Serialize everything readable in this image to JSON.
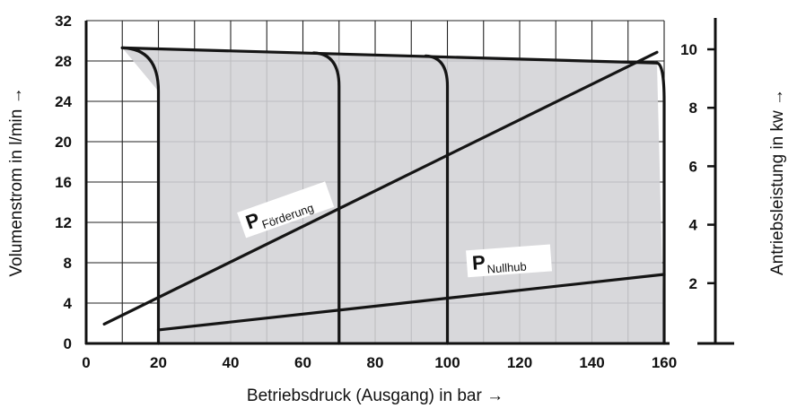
{
  "chart_data": {
    "type": "line",
    "x_axis": {
      "label": "Betriebsdruck (Ausgang) in bar →",
      "range": [
        0,
        160
      ],
      "ticks": [
        0,
        20,
        40,
        60,
        80,
        100,
        120,
        140,
        160
      ],
      "tick_labels": [
        "0",
        "20",
        "40",
        "60",
        "80",
        "100",
        "120",
        "140",
        "160"
      ],
      "grid_step": 10
    },
    "y_axis_left": {
      "label": "Volumenstrom in l/min →",
      "range": [
        0,
        32
      ],
      "ticks": [
        0,
        4,
        8,
        12,
        16,
        20,
        24,
        28,
        32
      ],
      "tick_labels": [
        "0",
        "4",
        "8",
        "12",
        "16",
        "20",
        "24",
        "28",
        "32"
      ],
      "grid_step": 4
    },
    "y_axis_right": {
      "label": "Antriebsleistung in kw →",
      "ticks": [
        2,
        4,
        6,
        8,
        10
      ],
      "tick_labels": [
        "2",
        "4",
        "6",
        "8",
        "10"
      ]
    },
    "grid": true,
    "shaded_region": {
      "description": "flow envelope",
      "color": "#d3d3d6",
      "points": [
        [
          10,
          29.3
        ],
        [
          158,
          27.8
        ],
        [
          160,
          0
        ],
        [
          20,
          0
        ],
        [
          20,
          25
        ]
      ]
    },
    "series": [
      {
        "name": "",
        "axis": "left",
        "kind": "flow-envelope",
        "points": [
          [
            10,
            29.3
          ],
          [
            158,
            27.8
          ]
        ]
      },
      {
        "name": "",
        "axis": "left",
        "kind": "cutoff-20",
        "points": [
          [
            10,
            29.3
          ],
          [
            20,
            25
          ],
          [
            20,
            0
          ]
        ]
      },
      {
        "name": "",
        "axis": "left",
        "kind": "cutoff-70",
        "points": [
          [
            63,
            28.8
          ],
          [
            70,
            25.5
          ],
          [
            70,
            0
          ]
        ]
      },
      {
        "name": "",
        "axis": "left",
        "kind": "cutoff-100",
        "points": [
          [
            94,
            28.5
          ],
          [
            100,
            25.5
          ],
          [
            100,
            0
          ]
        ]
      },
      {
        "name": "",
        "axis": "left",
        "kind": "cutoff-160",
        "points": [
          [
            158,
            27.8
          ],
          [
            160,
            24
          ],
          [
            160,
            0
          ]
        ]
      },
      {
        "name": "P Förderung",
        "axis": "right",
        "kind": "power-delivery",
        "points": [
          [
            5,
            0.6
          ],
          [
            158,
            9.9
          ]
        ]
      },
      {
        "name": "P Nullhub",
        "axis": "right",
        "kind": "power-idle",
        "points": [
          [
            20,
            0.4
          ],
          [
            160,
            2.3
          ]
        ]
      }
    ],
    "annotations": [
      {
        "main": "P",
        "sub": "Förderung",
        "x": 45,
        "y": 11.3
      },
      {
        "main": "P",
        "sub": "Nullhub",
        "x": 107,
        "y": 7.3
      }
    ]
  }
}
